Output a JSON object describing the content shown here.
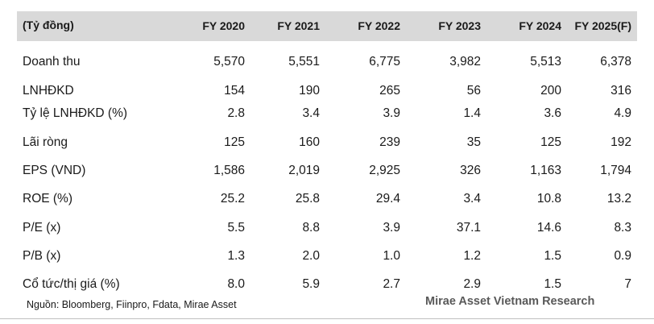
{
  "table": {
    "header": {
      "label": "(Tỷ đồng)",
      "columns": [
        "FY 2020",
        "FY 2021",
        "FY 2022",
        "FY 2023",
        "FY 2024",
        "FY 2025(F)"
      ]
    },
    "rows": [
      {
        "label": "Doanh thu",
        "values": [
          "5,570",
          "5,551",
          "6,775",
          "3,982",
          "5,513",
          "6,378"
        ]
      },
      {
        "label": "LNHĐKD",
        "values": [
          "154",
          "190",
          "265",
          "56",
          "200",
          "316"
        ]
      },
      {
        "label": "Tỷ lệ LNHĐKD (%)",
        "values": [
          "2.8",
          "3.4",
          "3.9",
          "1.4",
          "3.6",
          "4.9"
        ]
      },
      {
        "label": "Lãi ròng",
        "values": [
          "125",
          "160",
          "239",
          "35",
          "125",
          "192"
        ]
      },
      {
        "label": "EPS (VND)",
        "values": [
          "1,586",
          "2,019",
          "2,925",
          "326",
          "1,163",
          "1,794"
        ]
      },
      {
        "label": "ROE (%)",
        "values": [
          "25.2",
          "25.8",
          "29.4",
          "3.4",
          "10.8",
          "13.2"
        ]
      },
      {
        "label": "P/E (x)",
        "values": [
          "5.5",
          "8.8",
          "3.9",
          "37.1",
          "14.6",
          "8.3"
        ]
      },
      {
        "label": "P/B (x)",
        "values": [
          "1.3",
          "2.0",
          "1.0",
          "1.2",
          "1.5",
          "0.9"
        ]
      },
      {
        "label": "Cổ tức/thị giá (%)",
        "values": [
          "8.0",
          "5.9",
          "2.7",
          "2.9",
          "1.5",
          "7"
        ]
      }
    ]
  },
  "footer": {
    "source": "Nguồn: Bloomberg, Fiinpro, Fdata, Mirae Asset",
    "brand": "Mirae Asset Vietnam Research"
  },
  "colors": {
    "header_band": "#d9d9d9",
    "brand_text": "#595959"
  }
}
